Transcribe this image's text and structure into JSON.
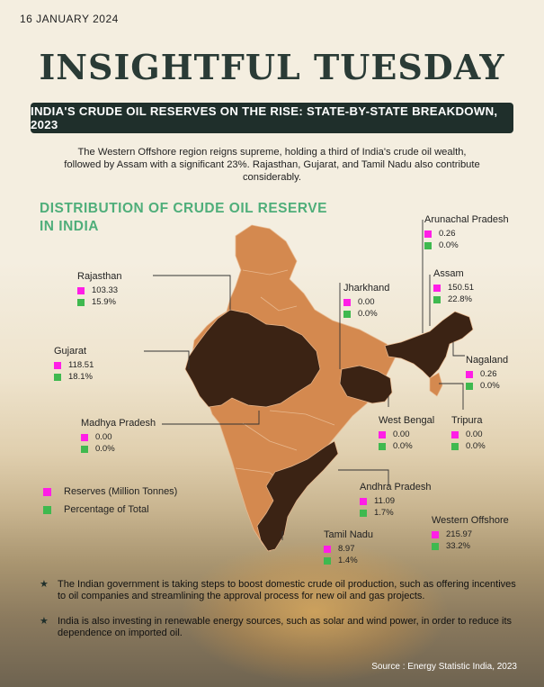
{
  "date": "16 JANUARY 2024",
  "title": "INSIGHTFUL TUESDAY",
  "banner": "INDIA'S CRUDE OIL RESERVES ON THE RISE: STATE-BY-STATE BREAKDOWN, 2023",
  "intro": "The Western Offshore region reigns supreme, holding a third of India's crude oil wealth, followed by Assam with a significant 23%. Rajasthan, Gujarat, and Tamil Nadu also contribute considerably.",
  "map_heading": "DISTRIBUTION OF CRUDE OIL RESERVE IN INDIA",
  "colors": {
    "reserve": "#ff1ee6",
    "percentage": "#3fb94f",
    "map_base": "#d4894f",
    "map_highlight": "#3b2314",
    "banner": "#1f2f2b",
    "heading": "#4fae7a"
  },
  "states": [
    {
      "name": "Arunachal Pradesh",
      "reserve": "0.26",
      "pct": "0.0%"
    },
    {
      "name": "Rajasthan",
      "reserve": "103.33",
      "pct": "15.9%"
    },
    {
      "name": "Jharkhand",
      "reserve": "0.00",
      "pct": "0.0%"
    },
    {
      "name": "Assam",
      "reserve": "150.51",
      "pct": "22.8%"
    },
    {
      "name": "Gujarat",
      "reserve": "118.51",
      "pct": "18.1%"
    },
    {
      "name": "Nagaland",
      "reserve": "0.26",
      "pct": "0.0%"
    },
    {
      "name": "Madhya Pradesh",
      "reserve": "0.00",
      "pct": "0.0%"
    },
    {
      "name": "West Bengal",
      "reserve": "0.00",
      "pct": "0.0%"
    },
    {
      "name": "Tripura",
      "reserve": "0.00",
      "pct": "0.0%"
    },
    {
      "name": "Andhra Pradesh",
      "reserve": "11.09",
      "pct": "1.7%"
    },
    {
      "name": "Western Offshore",
      "reserve": "215.97",
      "pct": "33.2%"
    },
    {
      "name": "Tamil Nadu",
      "reserve": "8.97",
      "pct": "1.4%"
    }
  ],
  "legend": {
    "reserve": "Reserves (Million Tonnes)",
    "percentage": "Percentage of Total"
  },
  "bullets": [
    "The Indian government is taking steps to boost domestic crude oil production, such as offering incentives to oil companies and streamlining the approval process for new oil and gas projects.",
    "India is also investing in renewable energy sources, such as solar and wind power, in order to reduce its dependence on imported oil."
  ],
  "source": "Source : Energy Statistic India, 2023"
}
